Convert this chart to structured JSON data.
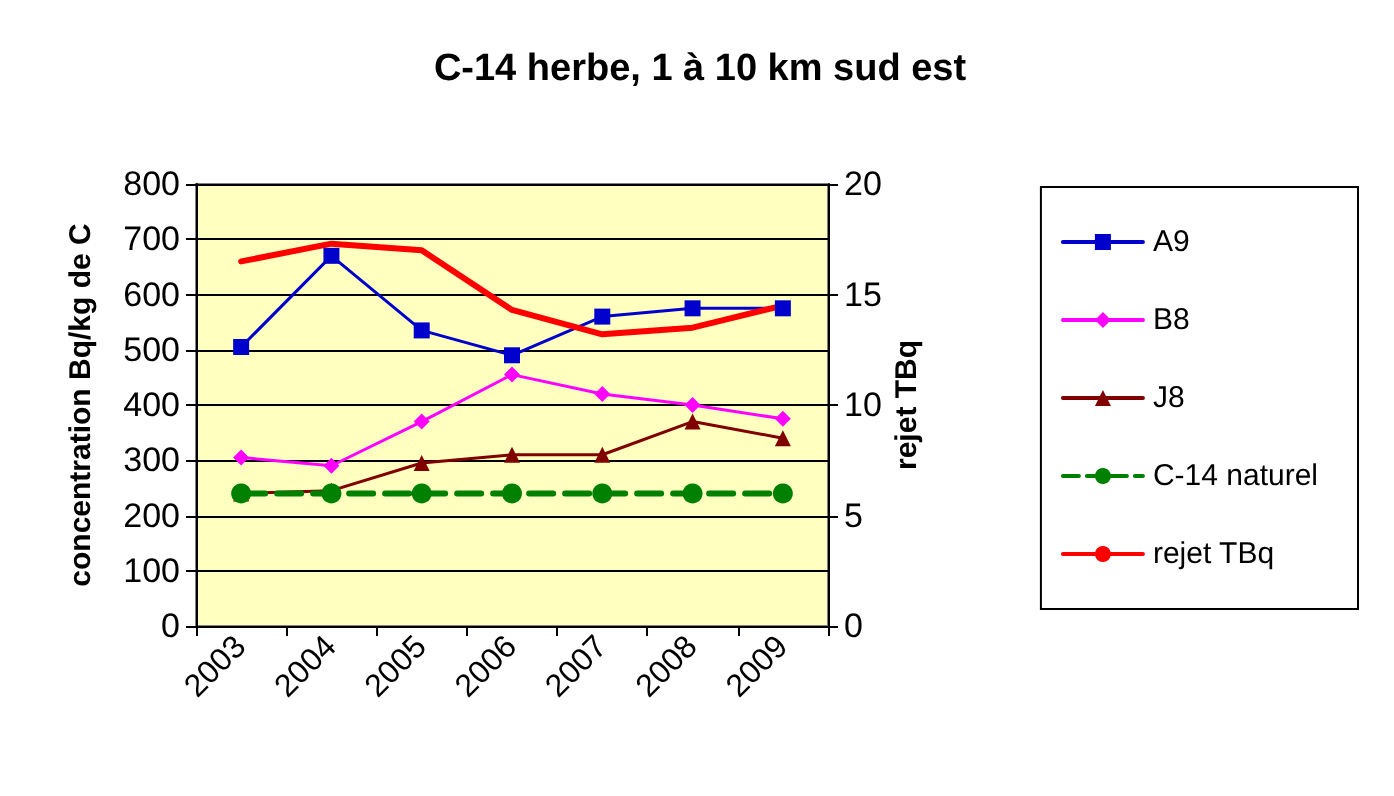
{
  "chart_data": {
    "type": "line",
    "title": "C-14 herbe, 1 à 10 km sud est",
    "ylabel": "concentration Bq/kg de C",
    "y2label": "rejet TBq",
    "categories": [
      "2003",
      "2004",
      "2005",
      "2006",
      "2007",
      "2008",
      "2009"
    ],
    "series": [
      {
        "name": "A9",
        "color": "#0000cc",
        "marker": "square",
        "values": [
          505,
          670,
          535,
          490,
          560,
          575,
          575
        ]
      },
      {
        "name": "B8",
        "color": "#ff00ff",
        "marker": "diamond",
        "values": [
          305,
          290,
          370,
          455,
          420,
          400,
          375
        ]
      },
      {
        "name": "J8",
        "color": "#800000",
        "marker": "triangle",
        "values": [
          240,
          245,
          295,
          310,
          310,
          370,
          340
        ]
      },
      {
        "name": "C-14 naturel",
        "color": "#008000",
        "marker": "circle",
        "line_style": "dashed",
        "values": [
          240,
          240,
          240,
          240,
          240,
          240,
          240
        ]
      },
      {
        "name": "rejet TBq",
        "color": "#ff0000",
        "marker": "none",
        "axis": "y2",
        "values": [
          16.5,
          17.3,
          17,
          14.3,
          13.2,
          13.5,
          14.5
        ]
      }
    ],
    "ylim": [
      0,
      800
    ],
    "yticks": [
      0,
      100,
      200,
      300,
      400,
      500,
      600,
      700,
      800
    ],
    "y2lim": [
      0,
      20
    ],
    "y2ticks": [
      0,
      5,
      10,
      15,
      20
    ],
    "grid": "y",
    "legend": "right"
  }
}
